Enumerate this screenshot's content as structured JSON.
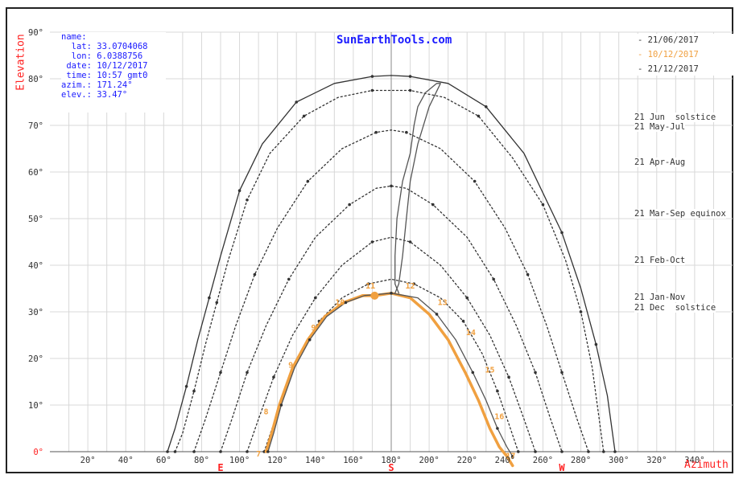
{
  "chart_data": {
    "type": "line",
    "site": "SunEarthTools.com",
    "info": [
      {
        "key": "name:",
        "value": ""
      },
      {
        "key": "lat:",
        "value": "33.0704068"
      },
      {
        "key": "lon:",
        "value": "6.0388756"
      },
      {
        "key": "date:",
        "value": "10/12/2017"
      },
      {
        "key": "time:",
        "value": "10:57 gmt0"
      },
      {
        "key": "azim.:",
        "value": "171.24°"
      },
      {
        "key": "elev.:",
        "value": "33.47°"
      }
    ],
    "ylabel": "Elevation",
    "xlabel": "Azimuth",
    "xlim": [
      0,
      360
    ],
    "ylim": [
      0,
      90
    ],
    "grid": true,
    "x_ticks": [
      "20°",
      "40°",
      "60°",
      "80°",
      "100°",
      "120°",
      "140°",
      "160°",
      "180°",
      "200°",
      "220°",
      "240°",
      "260°",
      "280°",
      "300°",
      "320°",
      "340°"
    ],
    "y_ticks": [
      "0°",
      "10°",
      "20°",
      "30°",
      "40°",
      "50°",
      "60°",
      "70°",
      "80°",
      "90°"
    ],
    "cardinal": [
      {
        "label": "E",
        "az": 90
      },
      {
        "label": "S",
        "az": 180
      },
      {
        "label": "W",
        "az": 270
      }
    ],
    "legend": [
      {
        "label": "- 21/06/2017",
        "color": "#333333"
      },
      {
        "label": "- 10/12/2017",
        "color": "#f0a040"
      },
      {
        "label": "- 21/12/2017",
        "color": "#333333"
      }
    ],
    "curve_labels": [
      {
        "text": "21 Jun  solstice",
        "elev": 79.5
      },
      {
        "text": "21 May-Jul",
        "elev": 77.5
      },
      {
        "text": "21 Apr-Aug",
        "elev": 69
      },
      {
        "text": "21 Mar-Sep equinox",
        "elev": 57
      },
      {
        "text": "21 Feb-Oct",
        "elev": 46
      },
      {
        "text": "21 Jan-Nov",
        "elev": 37
      },
      {
        "text": "21 Dec  solstice",
        "elev": 34.5
      }
    ],
    "series": [
      {
        "name": "21 Jun solstice",
        "style": "solid",
        "color": "#333333",
        "x": [
          62,
          66,
          72,
          78,
          84,
          90,
          100,
          112,
          130,
          150,
          170,
          180,
          190,
          210,
          230,
          250,
          270,
          280,
          288,
          294,
          298
        ],
        "y": [
          0,
          5,
          14,
          24,
          33,
          42,
          56,
          66,
          75,
          79,
          80.5,
          80.7,
          80.5,
          79,
          74,
          64,
          47,
          35,
          23,
          12,
          0
        ]
      },
      {
        "name": "21 May-Jul",
        "style": "dotted",
        "color": "#333333",
        "x": [
          66,
          70,
          76,
          82,
          88,
          94,
          104,
          116,
          134,
          152,
          170,
          180,
          190,
          208,
          226,
          244,
          260,
          272,
          280,
          286,
          292
        ],
        "y": [
          0,
          4,
          13,
          23,
          32,
          41,
          54,
          64,
          72,
          76,
          77.5,
          77.5,
          77.5,
          76,
          72,
          63,
          53,
          41,
          30,
          18,
          0
        ]
      },
      {
        "name": "21 Apr-Aug",
        "style": "dotted",
        "color": "#333333",
        "x": [
          76,
          82,
          90,
          98,
          108,
          120,
          136,
          154,
          172,
          180,
          188,
          206,
          224,
          240,
          252,
          262,
          270,
          278,
          284
        ],
        "y": [
          0,
          7,
          17,
          27,
          38,
          48,
          58,
          65,
          68.5,
          69,
          68.5,
          65,
          58,
          48,
          38,
          27,
          17,
          7,
          0
        ]
      },
      {
        "name": "21 Mar-Sep equinox",
        "style": "dotted",
        "color": "#333333",
        "x": [
          90,
          96,
          104,
          114,
          126,
          140,
          158,
          172,
          180,
          188,
          202,
          220,
          234,
          246,
          256,
          264,
          270
        ],
        "y": [
          0,
          7,
          17,
          27,
          37,
          46,
          53,
          56.5,
          57,
          56.5,
          53,
          46,
          37,
          27,
          17,
          7,
          0
        ]
      },
      {
        "name": "21 Feb-Oct",
        "style": "dotted",
        "color": "#333333",
        "x": [
          104,
          110,
          118,
          128,
          140,
          154,
          170,
          180,
          190,
          206,
          220,
          232,
          242,
          250,
          256
        ],
        "y": [
          0,
          7,
          16,
          25,
          33,
          40,
          45,
          46,
          45,
          40,
          33,
          25,
          16,
          7,
          0
        ]
      },
      {
        "name": "21 Jan-Nov",
        "style": "dotted",
        "color": "#333333",
        "x": [
          113,
          118,
          124,
          132,
          142,
          154,
          168,
          180,
          192,
          206,
          218,
          228,
          236,
          242,
          247
        ],
        "y": [
          0,
          6,
          13,
          21,
          28,
          33,
          36,
          37,
          36,
          33,
          28,
          21,
          13,
          6,
          0
        ]
      },
      {
        "name": "10/12/2017",
        "style": "solid",
        "color": "#f0a040",
        "x": [
          114,
          117,
          121,
          128,
          136,
          145,
          155,
          165,
          171.24,
          180,
          190,
          200,
          210,
          219,
          226,
          232,
          237,
          241,
          244
        ],
        "y": [
          0,
          4,
          10,
          18,
          24,
          29,
          32,
          33.5,
          33.47,
          34,
          33,
          29.5,
          24,
          17,
          11,
          5,
          1,
          -1,
          -3
        ]
      },
      {
        "name": "21 Dec solstice",
        "style": "solid",
        "color": "#555555",
        "x": [
          115,
          118,
          122,
          129,
          137,
          146,
          156,
          166,
          180,
          194,
          204,
          214,
          223,
          230,
          236,
          241,
          244
        ],
        "y": [
          0,
          4,
          10,
          18,
          24,
          29,
          32,
          33.5,
          34,
          33,
          29.5,
          24,
          17,
          11,
          5,
          1,
          -1
        ]
      },
      {
        "name": "Analemma",
        "style": "solid",
        "color": "#555555",
        "x": [
          184,
          182,
          182,
          183,
          186,
          190,
          192,
          194,
          198,
          204,
          206,
          200,
          194,
          190,
          188,
          186,
          184,
          182
        ],
        "y": [
          34,
          36,
          42,
          50,
          58,
          64,
          70,
          74,
          77,
          79,
          79,
          74,
          66,
          58,
          50,
          42,
          36,
          34
        ]
      }
    ],
    "sun_position": {
      "az": 171.24,
      "elev": 33.47,
      "color": "#f0a040"
    },
    "hour_labels": [
      {
        "text": "7",
        "az": 110,
        "elev": -1
      },
      {
        "text": "8",
        "az": 114,
        "elev": 8
      },
      {
        "text": "9",
        "az": 127,
        "elev": 18
      },
      {
        "text": "9",
        "az": 139,
        "elev": 26
      },
      {
        "text": "10",
        "az": 153,
        "elev": 31.5
      },
      {
        "text": "11",
        "az": 169,
        "elev": 35
      },
      {
        "text": "12",
        "az": 190,
        "elev": 35
      },
      {
        "text": "13",
        "az": 207,
        "elev": 31.5
      },
      {
        "text": "14",
        "az": 222,
        "elev": 25
      },
      {
        "text": "15",
        "az": 232,
        "elev": 17
      },
      {
        "text": "16",
        "az": 237,
        "elev": 7
      },
      {
        "text": "17",
        "az": 243,
        "elev": -1.5
      }
    ]
  }
}
